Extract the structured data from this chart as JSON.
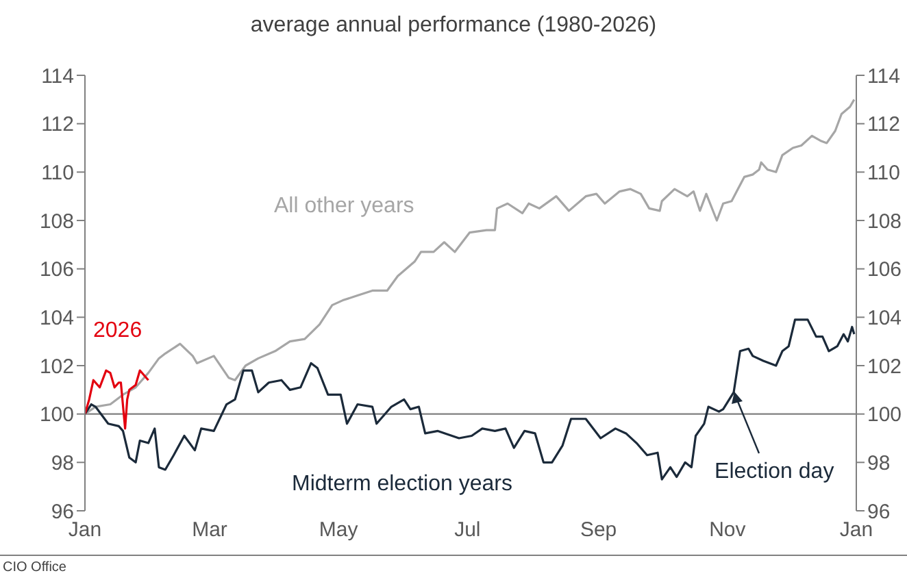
{
  "chart_data": {
    "type": "line",
    "title": "average annual performance (1980-2026)",
    "xlim": [
      "2026-01-01",
      "2027-01-01"
    ],
    "xticks": [
      {
        "value": "2026-01-01",
        "label": "Jan"
      },
      {
        "value": "2026-03-01",
        "label": "Mar"
      },
      {
        "value": "2026-05-01",
        "label": "May"
      },
      {
        "value": "2026-07-01",
        "label": "Jul"
      },
      {
        "value": "2026-09-01",
        "label": "Sep"
      },
      {
        "value": "2026-11-01",
        "label": "Nov"
      },
      {
        "value": "2027-01-01",
        "label": "Jan"
      }
    ],
    "ylim": [
      96,
      114
    ],
    "yticks": [
      96,
      98,
      100,
      102,
      104,
      106,
      108,
      110,
      112,
      114
    ],
    "y2lim": [
      96,
      114
    ],
    "y2ticks": [
      96,
      98,
      100,
      102,
      104,
      106,
      108,
      110,
      112,
      114
    ],
    "grid": false,
    "legend": false,
    "marker": "none",
    "line_style": "solid",
    "ref_lines": [
      {
        "axis": "y",
        "value": 100,
        "color": "#808080"
      }
    ],
    "annotations": [
      {
        "text": "Election day",
        "x": "2026-11-04",
        "y": 100.9
      },
      "CIO Office"
    ],
    "series": [
      {
        "name": "All other years",
        "color": "#a6a6a6",
        "x": [
          "2026-01-01",
          "2026-01-06",
          "2026-01-13",
          "2026-01-19",
          "2026-01-25",
          "2026-01-31",
          "2026-02-05",
          "2026-02-08",
          "2026-02-15",
          "2026-02-21",
          "2026-02-23",
          "2026-03-03",
          "2026-03-10",
          "2026-03-13",
          "2026-03-18",
          "2026-03-24",
          "2026-04-01",
          "2026-04-08",
          "2026-04-15",
          "2026-04-22",
          "2026-04-28",
          "2026-05-03",
          "2026-05-10",
          "2026-05-17",
          "2026-05-24",
          "2026-05-29",
          "2026-06-06",
          "2026-06-09",
          "2026-06-15",
          "2026-06-20",
          "2026-06-25",
          "2026-07-02",
          "2026-07-10",
          "2026-07-14",
          "2026-07-15",
          "2026-07-20",
          "2026-07-27",
          "2026-07-30",
          "2026-08-04",
          "2026-08-12",
          "2026-08-18",
          "2026-08-26",
          "2026-08-31",
          "2026-09-04",
          "2026-09-11",
          "2026-09-16",
          "2026-09-21",
          "2026-09-25",
          "2026-09-30",
          "2026-10-01",
          "2026-10-07",
          "2026-10-13",
          "2026-10-16",
          "2026-10-19",
          "2026-10-22",
          "2026-10-27",
          "2026-10-30",
          "2026-11-03",
          "2026-11-06",
          "2026-11-09",
          "2026-11-13",
          "2026-11-16",
          "2026-11-17",
          "2026-11-20",
          "2026-11-24",
          "2026-11-27",
          "2026-12-02",
          "2026-12-06",
          "2026-12-11",
          "2026-12-15",
          "2026-12-18",
          "2026-12-22",
          "2026-12-25",
          "2026-12-29",
          "2026-12-31"
        ],
        "values": [
          100,
          100.3,
          100.4,
          100.8,
          101.1,
          101.7,
          102.3,
          102.5,
          102.9,
          102.4,
          102.1,
          102.4,
          101.5,
          101.4,
          102.0,
          102.3,
          102.6,
          103.0,
          103.1,
          103.7,
          104.5,
          104.7,
          104.9,
          105.1,
          105.1,
          105.7,
          106.3,
          106.7,
          106.7,
          107.1,
          106.7,
          107.5,
          107.6,
          107.6,
          108.5,
          108.7,
          108.3,
          108.7,
          108.5,
          109.0,
          108.4,
          109.0,
          109.1,
          108.7,
          109.2,
          109.3,
          109.1,
          108.5,
          108.4,
          108.8,
          109.3,
          109.0,
          109.2,
          108.4,
          109.1,
          108.0,
          108.7,
          108.8,
          109.3,
          109.8,
          109.9,
          110.1,
          110.4,
          110.1,
          110.0,
          110.7,
          111.0,
          111.1,
          111.5,
          111.3,
          111.2,
          111.7,
          112.4,
          112.7,
          113.0
        ]
      },
      {
        "name": "Midterm election years",
        "color": "#1b2a3a",
        "x": [
          "2026-01-01",
          "2026-01-04",
          "2026-01-06",
          "2026-01-12",
          "2026-01-17",
          "2026-01-19",
          "2026-01-22",
          "2026-01-25",
          "2026-01-27",
          "2026-01-31",
          "2026-02-03",
          "2026-02-05",
          "2026-02-08",
          "2026-02-12",
          "2026-02-17",
          "2026-02-22",
          "2026-02-25",
          "2026-03-03",
          "2026-03-09",
          "2026-03-13",
          "2026-03-17",
          "2026-03-21",
          "2026-03-24",
          "2026-03-29",
          "2026-04-04",
          "2026-04-08",
          "2026-04-13",
          "2026-04-18",
          "2026-04-21",
          "2026-04-26",
          "2026-05-02",
          "2026-05-05",
          "2026-05-10",
          "2026-05-17",
          "2026-05-19",
          "2026-05-26",
          "2026-06-01",
          "2026-06-04",
          "2026-06-08",
          "2026-06-11",
          "2026-06-17",
          "2026-06-27",
          "2026-07-03",
          "2026-07-08",
          "2026-07-14",
          "2026-07-19",
          "2026-07-23",
          "2026-07-28",
          "2026-08-02",
          "2026-08-06",
          "2026-08-10",
          "2026-08-15",
          "2026-08-19",
          "2026-08-26",
          "2026-09-02",
          "2026-09-09",
          "2026-09-14",
          "2026-09-19",
          "2026-09-24",
          "2026-09-29",
          "2026-10-01",
          "2026-10-05",
          "2026-10-08",
          "2026-10-12",
          "2026-10-15",
          "2026-10-17",
          "2026-10-21",
          "2026-10-23",
          "2026-10-28",
          "2026-10-30",
          "2026-11-04",
          "2026-11-07",
          "2026-11-11",
          "2026-11-13",
          "2026-11-18",
          "2026-11-24",
          "2026-11-27",
          "2026-11-30",
          "2026-12-03",
          "2026-12-09",
          "2026-12-13",
          "2026-12-16",
          "2026-12-19",
          "2026-12-23",
          "2026-12-26",
          "2026-12-28",
          "2026-12-30",
          "2026-12-31"
        ],
        "values": [
          100,
          100.4,
          100.3,
          99.6,
          99.5,
          99.3,
          98.2,
          98.0,
          98.9,
          98.8,
          99.4,
          97.8,
          97.7,
          98.3,
          99.1,
          98.5,
          99.4,
          99.3,
          100.4,
          100.6,
          101.8,
          101.8,
          100.9,
          101.3,
          101.4,
          101.0,
          101.1,
          102.1,
          101.9,
          100.8,
          100.8,
          99.6,
          100.4,
          100.3,
          99.6,
          100.3,
          100.6,
          100.2,
          100.3,
          99.2,
          99.3,
          99.0,
          99.1,
          99.4,
          99.3,
          99.4,
          98.6,
          99.3,
          99.2,
          98.0,
          98.0,
          98.7,
          99.8,
          99.8,
          99.0,
          99.4,
          99.2,
          98.8,
          98.3,
          98.4,
          97.3,
          97.8,
          97.4,
          98.0,
          97.8,
          99.1,
          99.6,
          100.3,
          100.1,
          100.2,
          100.9,
          102.6,
          102.7,
          102.4,
          102.2,
          102.0,
          102.6,
          102.8,
          103.9,
          103.9,
          103.2,
          103.2,
          102.6,
          102.8,
          103.3,
          103.0,
          103.6,
          103.3
        ]
      },
      {
        "name": "2026",
        "color": "#e3000f",
        "x": [
          "2026-01-01",
          "2026-01-03",
          "2026-01-05",
          "2026-01-08",
          "2026-01-11",
          "2026-01-13",
          "2026-01-15",
          "2026-01-17",
          "2026-01-18",
          "2026-01-20",
          "2026-01-21",
          "2026-01-22",
          "2026-01-25",
          "2026-01-27",
          "2026-01-31"
        ],
        "values": [
          100,
          100.6,
          101.4,
          101.1,
          101.8,
          101.7,
          101.1,
          101.3,
          101.3,
          99.4,
          100.6,
          101.0,
          101.2,
          101.8,
          101.4
        ]
      }
    ]
  }
}
